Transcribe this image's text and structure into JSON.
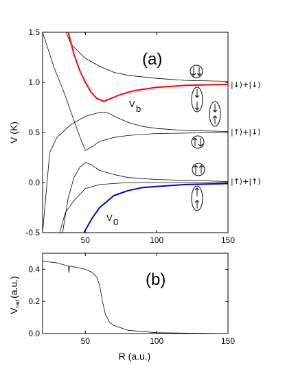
{
  "chart_data": [
    {
      "panel": "(a)",
      "type": "line",
      "ylabel": "V (K)",
      "xlim": [
        20,
        150
      ],
      "ylim": [
        -0.5,
        1.5
      ],
      "x_ticks": [
        "50",
        "100",
        "150"
      ],
      "y_ticks": [
        "-0.5",
        "0.0",
        "0.5",
        "1.0",
        "1.5"
      ],
      "annotations": [
        "V",
        "b",
        "V",
        "0"
      ],
      "asymptote_labels": [
        "|↓⟩+|↓⟩",
        "|↑⟩+|↓⟩",
        "|↑⟩+|↑⟩"
      ],
      "series": [
        {
          "color": "#000000",
          "points": [
            [
              20,
              2.0
            ],
            [
              30,
              1.72
            ],
            [
              40,
              1.38
            ],
            [
              50,
              1.24
            ],
            [
              60,
              1.16
            ],
            [
              70,
              1.1
            ],
            [
              80,
              1.07
            ],
            [
              100,
              1.04
            ],
            [
              120,
              1.02
            ],
            [
              150,
              1.01
            ]
          ]
        },
        {
          "color": "#ff0000",
          "points": [
            [
              38,
              1.5
            ],
            [
              42,
              1.28
            ],
            [
              46,
              1.12
            ],
            [
              50,
              1.0
            ],
            [
              54,
              0.9
            ],
            [
              58,
              0.84
            ],
            [
              63,
              0.81
            ],
            [
              68,
              0.84
            ],
            [
              75,
              0.88
            ],
            [
              85,
              0.92
            ],
            [
              100,
              0.95
            ],
            [
              120,
              0.97
            ],
            [
              150,
              0.98
            ]
          ]
        },
        {
          "color": "#000000",
          "points": [
            [
              20,
              -0.5
            ],
            [
              25,
              0.3
            ],
            [
              30,
              0.45
            ],
            [
              40,
              0.58
            ],
            [
              50,
              0.66
            ],
            [
              60,
              0.7
            ],
            [
              65,
              0.7
            ],
            [
              72,
              0.65
            ],
            [
              80,
              0.6
            ],
            [
              90,
              0.56
            ],
            [
              100,
              0.54
            ],
            [
              120,
              0.52
            ],
            [
              150,
              0.51
            ]
          ]
        },
        {
          "color": "#000000",
          "points": [
            [
              20,
              1.5
            ],
            [
              28,
              1.15
            ],
            [
              35,
              0.9
            ],
            [
              40,
              0.7
            ],
            [
              45,
              0.5
            ],
            [
              50,
              0.32
            ],
            [
              55,
              0.36
            ],
            [
              60,
              0.41
            ],
            [
              70,
              0.45
            ],
            [
              80,
              0.47
            ],
            [
              100,
              0.49
            ],
            [
              150,
              0.5
            ]
          ]
        },
        {
          "color": "#000000",
          "points": [
            [
              34,
              -0.5
            ],
            [
              38,
              -0.15
            ],
            [
              42,
              0.05
            ],
            [
              46,
              0.15
            ],
            [
              50,
              0.2
            ],
            [
              54,
              0.18
            ],
            [
              60,
              0.12
            ],
            [
              70,
              0.08
            ],
            [
              80,
              0.05
            ],
            [
              100,
              0.03
            ],
            [
              150,
              0.01
            ]
          ]
        },
        {
          "color": "#000000",
          "points": [
            [
              32,
              -0.5
            ],
            [
              36,
              -0.3
            ],
            [
              42,
              -0.18
            ],
            [
              46,
              -0.12
            ],
            [
              50,
              -0.06
            ],
            [
              60,
              -0.02
            ],
            [
              80,
              0.0
            ],
            [
              150,
              0.0
            ]
          ]
        },
        {
          "color": "#0000cc",
          "points": [
            [
              49,
              -0.5
            ],
            [
              55,
              -0.35
            ],
            [
              60,
              -0.25
            ],
            [
              70,
              -0.13
            ],
            [
              80,
              -0.08
            ],
            [
              90,
              -0.05
            ],
            [
              100,
              -0.04
            ],
            [
              120,
              -0.02
            ],
            [
              150,
              -0.01
            ]
          ]
        }
      ]
    },
    {
      "panel": "(b)",
      "type": "line",
      "xlabel": "R (a.u.)",
      "ylabel": "V",
      "ylabel_sub": "rad",
      "ylabel_unit": "(a.u.)",
      "xlim": [
        20,
        150
      ],
      "ylim": [
        0.0,
        0.5
      ],
      "x_ticks": [
        "50",
        "100",
        "150"
      ],
      "y_ticks": [
        "0.0",
        "0.2",
        "0.4"
      ],
      "series": [
        {
          "color": "#000000",
          "points": [
            [
              20,
              0.45
            ],
            [
              30,
              0.44
            ],
            [
              38,
              0.42
            ],
            [
              38.5,
              0.38
            ],
            [
              39,
              0.42
            ],
            [
              45,
              0.41
            ],
            [
              50,
              0.4
            ],
            [
              55,
              0.38
            ],
            [
              58,
              0.35
            ],
            [
              60,
              0.3
            ],
            [
              62,
              0.2
            ],
            [
              64,
              0.12
            ],
            [
              67,
              0.07
            ],
            [
              70,
              0.05
            ],
            [
              80,
              0.02
            ],
            [
              100,
              0.005
            ],
            [
              150,
              0.0
            ]
          ]
        }
      ]
    }
  ]
}
